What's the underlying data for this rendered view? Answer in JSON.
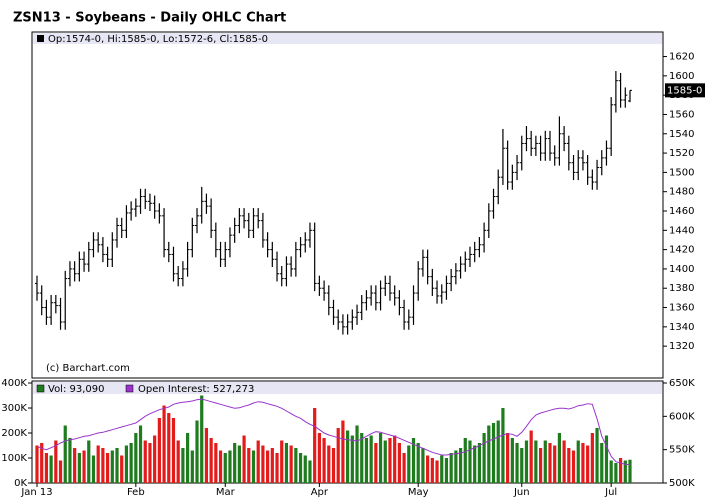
{
  "chart_data": {
    "type": "ohlc",
    "title": "ZSN13 - Soybeans - Daily OHLC Chart",
    "legend_text": "Op:1574-0, Hi:1585-0, Lo:1572-6, Cl:1585-0",
    "last_price_label": "1585-0",
    "credit": "(c) Barchart.com",
    "color": "#000000",
    "categories": [
      "Jan 13",
      null,
      null,
      null,
      null,
      null,
      null,
      null,
      null,
      null,
      null,
      null,
      null,
      null,
      null,
      null,
      null,
      null,
      null,
      null,
      null,
      "Feb",
      null,
      null,
      null,
      null,
      null,
      null,
      null,
      null,
      null,
      null,
      null,
      null,
      null,
      null,
      null,
      null,
      null,
      null,
      "Mar",
      null,
      null,
      null,
      null,
      null,
      null,
      null,
      null,
      null,
      null,
      null,
      null,
      null,
      null,
      null,
      null,
      null,
      null,
      null,
      "Apr",
      null,
      null,
      null,
      null,
      null,
      null,
      null,
      null,
      null,
      null,
      null,
      null,
      null,
      null,
      null,
      null,
      null,
      null,
      null,
      null,
      "May",
      null,
      null,
      null,
      null,
      null,
      null,
      null,
      null,
      null,
      null,
      null,
      null,
      null,
      null,
      null,
      null,
      null,
      null,
      null,
      null,
      null,
      "Jun",
      null,
      null,
      null,
      null,
      null,
      null,
      null,
      null,
      null,
      null,
      null,
      null,
      null,
      null,
      null,
      null,
      null,
      null,
      "Jul",
      null,
      null,
      null,
      null
    ],
    "open": [
      1385,
      1375,
      1360,
      1350,
      1365,
      1362,
      1345,
      1390,
      1400,
      1395,
      1410,
      1405,
      1420,
      1430,
      1425,
      1415,
      1410,
      1430,
      1445,
      1440,
      1458,
      1462,
      1465,
      1475,
      1470,
      1468,
      1460,
      1455,
      1420,
      1415,
      1395,
      1390,
      1400,
      1420,
      1445,
      1455,
      1470,
      1465,
      1440,
      1420,
      1410,
      1420,
      1435,
      1445,
      1455,
      1450,
      1440,
      1455,
      1450,
      1430,
      1420,
      1410,
      1395,
      1390,
      1405,
      1400,
      1420,
      1425,
      1430,
      1440,
      1385,
      1380,
      1375,
      1360,
      1350,
      1345,
      1340,
      1345,
      1350,
      1355,
      1365,
      1370,
      1375,
      1365,
      1380,
      1385,
      1375,
      1370,
      1360,
      1345,
      1350,
      1375,
      1400,
      1412,
      1392,
      1380,
      1372,
      1376,
      1385,
      1392,
      1398,
      1405,
      1410,
      1415,
      1420,
      1425,
      1440,
      1460,
      1475,
      1495,
      1525,
      1490,
      1500,
      1510,
      1530,
      1535,
      1525,
      1530,
      1520,
      1535,
      1520,
      1515,
      1540,
      1530,
      1510,
      1500,
      1515,
      1510,
      1495,
      1490,
      1505,
      1515,
      1525,
      1570,
      1595,
      1575,
      1574
    ],
    "high": [
      1393,
      1383,
      1368,
      1373,
      1373,
      1370,
      1398,
      1408,
      1408,
      1418,
      1418,
      1428,
      1438,
      1438,
      1433,
      1423,
      1438,
      1453,
      1453,
      1466,
      1470,
      1473,
      1483,
      1483,
      1478,
      1476,
      1468,
      1463,
      1428,
      1423,
      1403,
      1408,
      1428,
      1453,
      1463,
      1485,
      1478,
      1473,
      1448,
      1428,
      1428,
      1443,
      1453,
      1463,
      1463,
      1458,
      1463,
      1463,
      1458,
      1438,
      1428,
      1418,
      1403,
      1413,
      1413,
      1428,
      1433,
      1438,
      1448,
      1448,
      1393,
      1388,
      1383,
      1368,
      1358,
      1353,
      1353,
      1358,
      1363,
      1373,
      1378,
      1383,
      1383,
      1388,
      1393,
      1393,
      1383,
      1378,
      1368,
      1358,
      1383,
      1408,
      1420,
      1420,
      1400,
      1388,
      1384,
      1393,
      1400,
      1406,
      1413,
      1418,
      1423,
      1428,
      1433,
      1448,
      1468,
      1483,
      1503,
      1545,
      1533,
      1508,
      1518,
      1538,
      1548,
      1543,
      1538,
      1538,
      1543,
      1543,
      1528,
      1558,
      1548,
      1538,
      1518,
      1523,
      1523,
      1518,
      1503,
      1513,
      1523,
      1533,
      1578,
      1605,
      1603,
      1588,
      1585
    ],
    "low": [
      1367,
      1352,
      1342,
      1342,
      1354,
      1337,
      1337,
      1382,
      1387,
      1387,
      1397,
      1397,
      1412,
      1417,
      1407,
      1402,
      1402,
      1422,
      1432,
      1432,
      1450,
      1454,
      1457,
      1462,
      1460,
      1452,
      1447,
      1412,
      1407,
      1387,
      1382,
      1382,
      1392,
      1412,
      1437,
      1447,
      1457,
      1432,
      1412,
      1402,
      1402,
      1412,
      1427,
      1437,
      1442,
      1432,
      1432,
      1442,
      1422,
      1412,
      1402,
      1387,
      1382,
      1382,
      1392,
      1392,
      1412,
      1417,
      1422,
      1377,
      1372,
      1367,
      1352,
      1342,
      1337,
      1332,
      1332,
      1337,
      1342,
      1347,
      1357,
      1362,
      1357,
      1357,
      1372,
      1367,
      1362,
      1352,
      1337,
      1337,
      1342,
      1367,
      1392,
      1384,
      1372,
      1364,
      1364,
      1368,
      1377,
      1384,
      1390,
      1397,
      1402,
      1407,
      1412,
      1417,
      1432,
      1452,
      1467,
      1487,
      1482,
      1482,
      1492,
      1502,
      1522,
      1517,
      1517,
      1512,
      1512,
      1512,
      1507,
      1507,
      1522,
      1502,
      1492,
      1492,
      1502,
      1487,
      1482,
      1482,
      1497,
      1507,
      1517,
      1562,
      1567,
      1567,
      1572.75
    ],
    "close": [
      1375,
      1360,
      1350,
      1365,
      1362,
      1345,
      1390,
      1400,
      1395,
      1410,
      1405,
      1420,
      1430,
      1425,
      1415,
      1410,
      1430,
      1445,
      1440,
      1458,
      1462,
      1465,
      1475,
      1470,
      1468,
      1460,
      1455,
      1420,
      1415,
      1395,
      1390,
      1400,
      1420,
      1445,
      1455,
      1470,
      1465,
      1440,
      1420,
      1410,
      1420,
      1435,
      1445,
      1455,
      1450,
      1440,
      1455,
      1450,
      1430,
      1420,
      1410,
      1395,
      1390,
      1405,
      1400,
      1420,
      1425,
      1430,
      1440,
      1385,
      1380,
      1375,
      1360,
      1350,
      1345,
      1340,
      1345,
      1350,
      1355,
      1365,
      1370,
      1375,
      1365,
      1380,
      1385,
      1375,
      1370,
      1360,
      1345,
      1350,
      1375,
      1400,
      1412,
      1392,
      1380,
      1372,
      1376,
      1385,
      1392,
      1398,
      1405,
      1410,
      1415,
      1420,
      1425,
      1440,
      1460,
      1475,
      1495,
      1525,
      1490,
      1500,
      1510,
      1530,
      1535,
      1525,
      1530,
      1520,
      1535,
      1520,
      1515,
      1540,
      1530,
      1510,
      1500,
      1515,
      1510,
      1495,
      1490,
      1505,
      1515,
      1525,
      1570,
      1595,
      1575,
      1580,
      1585
    ],
    "ylim": [
      1287,
      1633
    ],
    "yticks": [
      1320,
      1340,
      1360,
      1380,
      1400,
      1420,
      1440,
      1460,
      1480,
      1500,
      1520,
      1540,
      1560,
      1580,
      1600,
      1620
    ],
    "volume_panel": {
      "volume_legend": "Vol: 93,090",
      "oi_legend": "Open Interest: 527,273",
      "up_color": "#1e7b1e",
      "down_color": "#e41b1b",
      "oi_color": "#9933cc",
      "volume": [
        150,
        160,
        120,
        110,
        170,
        90,
        230,
        180,
        140,
        120,
        130,
        170,
        110,
        150,
        140,
        120,
        130,
        140,
        110,
        150,
        160,
        200,
        230,
        170,
        160,
        190,
        260,
        310,
        280,
        260,
        170,
        140,
        200,
        130,
        250,
        350,
        220,
        180,
        160,
        130,
        120,
        130,
        160,
        150,
        190,
        140,
        130,
        170,
        150,
        130,
        140,
        120,
        170,
        160,
        150,
        140,
        120,
        110,
        90,
        300,
        200,
        180,
        150,
        140,
        220,
        250,
        210,
        190,
        230,
        200,
        180,
        190,
        160,
        200,
        170,
        180,
        190,
        160,
        120,
        150,
        180,
        160,
        140,
        110,
        100,
        90,
        110,
        100,
        120,
        130,
        140,
        180,
        170,
        150,
        160,
        200,
        230,
        240,
        250,
        300,
        200,
        180,
        160,
        140,
        170,
        210,
        170,
        140,
        170,
        160,
        150,
        200,
        170,
        140,
        130,
        170,
        160,
        150,
        200,
        220,
        160,
        190,
        90,
        80,
        100,
        90,
        93.09
      ],
      "open_interest": [
        555,
        552,
        550,
        553,
        556,
        560,
        563,
        565,
        566,
        568,
        570,
        571,
        573,
        575,
        576,
        578,
        580,
        582,
        584,
        586,
        588,
        590,
        595,
        600,
        604,
        607,
        610,
        612,
        614,
        618,
        620,
        621,
        622,
        623,
        625,
        626,
        624,
        622,
        620,
        618,
        616,
        614,
        612,
        613,
        615,
        617,
        620,
        622,
        621,
        619,
        617,
        615,
        612,
        608,
        604,
        600,
        597,
        592,
        588,
        585,
        580,
        575,
        572,
        570,
        568,
        566,
        565,
        564,
        563,
        566,
        570,
        574,
        577,
        576,
        574,
        572,
        570,
        567,
        564,
        561,
        558,
        555,
        552,
        549,
        546,
        544,
        542,
        542,
        543,
        544,
        545,
        547,
        550,
        553,
        556,
        560,
        563,
        566,
        569,
        572,
        574,
        573,
        570,
        576,
        585,
        595,
        602,
        605,
        607,
        609,
        611,
        612,
        612,
        611,
        613,
        616,
        617,
        619,
        618,
        596,
        570,
        555,
        540,
        532,
        530,
        528,
        527.273
      ],
      "ylim": [
        0,
        400
      ],
      "yticks": [
        {
          "value": 0,
          "label": "0K"
        },
        {
          "value": 100,
          "label": "100K"
        },
        {
          "value": 200,
          "label": "200K"
        },
        {
          "value": 300,
          "label": "300K"
        },
        {
          "value": 400,
          "label": "400K"
        }
      ],
      "y2lim": [
        500,
        650
      ],
      "y2ticks": [
        {
          "value": 500,
          "label": "500K"
        },
        {
          "value": 550,
          "label": "550K"
        },
        {
          "value": 600,
          "label": "600K"
        },
        {
          "value": 650,
          "label": "650K"
        }
      ]
    }
  }
}
